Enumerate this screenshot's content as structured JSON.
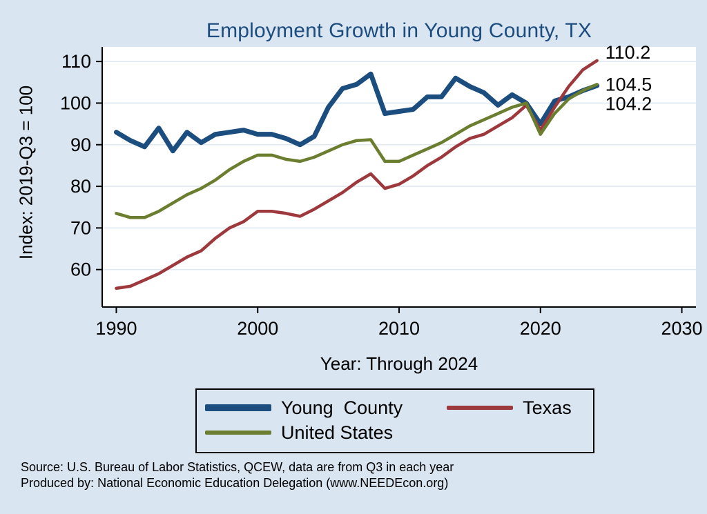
{
  "colors": {
    "background": "#d9e5f1",
    "plot_bg": "#ffffff",
    "grid": "#dfe9f4",
    "axis": "#000000",
    "title": "#1d4c7e"
  },
  "chart_data": {
    "type": "line",
    "title": "Employment Growth in Young County, TX",
    "ylabel": "Index: 2019-Q3 = 100",
    "xlabel": "Year: Through 2024",
    "xlim": [
      1989,
      2031
    ],
    "ylim": [
      51,
      113.5
    ],
    "x_ticks": [
      1990,
      2000,
      2010,
      2020,
      2030
    ],
    "y_ticks": [
      60,
      70,
      80,
      90,
      100,
      110
    ],
    "grid": true,
    "legend_position": "bottom",
    "x": [
      1990,
      1991,
      1992,
      1993,
      1994,
      1995,
      1996,
      1997,
      1998,
      1999,
      2000,
      2001,
      2002,
      2003,
      2004,
      2005,
      2006,
      2007,
      2008,
      2009,
      2010,
      2011,
      2012,
      2013,
      2014,
      2015,
      2016,
      2017,
      2018,
      2019,
      2020,
      2021,
      2022,
      2023,
      2024
    ],
    "series": [
      {
        "name": "Young  County",
        "color": "#1b4d7e",
        "line_width": 7,
        "end_label": "104.2",
        "values": [
          93,
          91,
          89.5,
          94,
          88.5,
          93,
          90.5,
          92.5,
          93,
          93.5,
          92.5,
          92.5,
          91.5,
          90,
          92,
          99,
          103.5,
          104.5,
          107,
          97.5,
          98,
          98.5,
          101.5,
          101.5,
          106,
          104,
          102.5,
          99.5,
          102,
          100,
          95,
          100.5,
          101.5,
          103,
          104.2
        ]
      },
      {
        "name": "Texas",
        "color": "#9d393d",
        "line_width": 4.5,
        "end_label": "110.2",
        "values": [
          55.5,
          56,
          57.5,
          59,
          61,
          63,
          64.5,
          67.5,
          70,
          71.5,
          74,
          74,
          73.5,
          72.8,
          74.5,
          76.5,
          78.5,
          81,
          83,
          79.5,
          80.5,
          82.5,
          85,
          87,
          89.5,
          91.5,
          92.5,
          94.5,
          96.5,
          99.5,
          93.5,
          99,
          104,
          108,
          110.2
        ]
      },
      {
        "name": "United States",
        "color": "#6b7d2f",
        "line_width": 4.5,
        "end_label": "104.5",
        "values": [
          73.5,
          72.5,
          72.5,
          74,
          76,
          78,
          79.5,
          81.5,
          84,
          86,
          87.5,
          87.5,
          86.5,
          86,
          87,
          88.5,
          90,
          91,
          91.2,
          86,
          86,
          87.5,
          89,
          90.5,
          92.5,
          94.5,
          96,
          97.5,
          99,
          100,
          92.5,
          97.5,
          101,
          103,
          104.5
        ]
      }
    ]
  },
  "footer": {
    "line1": "Source: U.S. Bureau of Labor Statistics, QCEW, data are from Q3 in each year",
    "line2": "Produced by: National Economic Education Delegation (www.NEEDEcon.org)"
  }
}
